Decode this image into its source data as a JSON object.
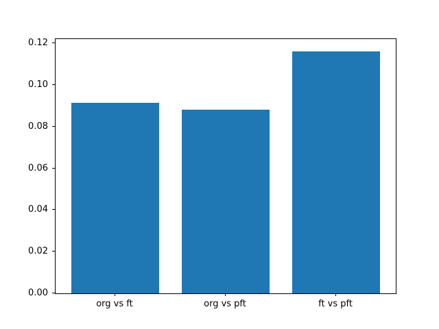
{
  "chart_data": {
    "type": "bar",
    "categories": [
      "org vs ft",
      "org vs pft",
      "ft vs pft"
    ],
    "values": [
      0.0913,
      0.088,
      0.1162
    ],
    "title": "",
    "xlabel": "",
    "ylabel": "",
    "ylim": [
      0,
      0.122
    ],
    "xlim": [
      -0.54,
      2.54
    ],
    "yticks": [
      0.0,
      0.02,
      0.04,
      0.06,
      0.08,
      0.1,
      0.12
    ],
    "ytick_labels": [
      "0.00",
      "0.02",
      "0.04",
      "0.06",
      "0.08",
      "0.10",
      "0.12"
    ],
    "bar_width_fraction": 0.8,
    "bar_color": "#1f77b4",
    "axis_color": "#000000",
    "background_color": "#ffffff",
    "grid": false,
    "legend": null
  }
}
